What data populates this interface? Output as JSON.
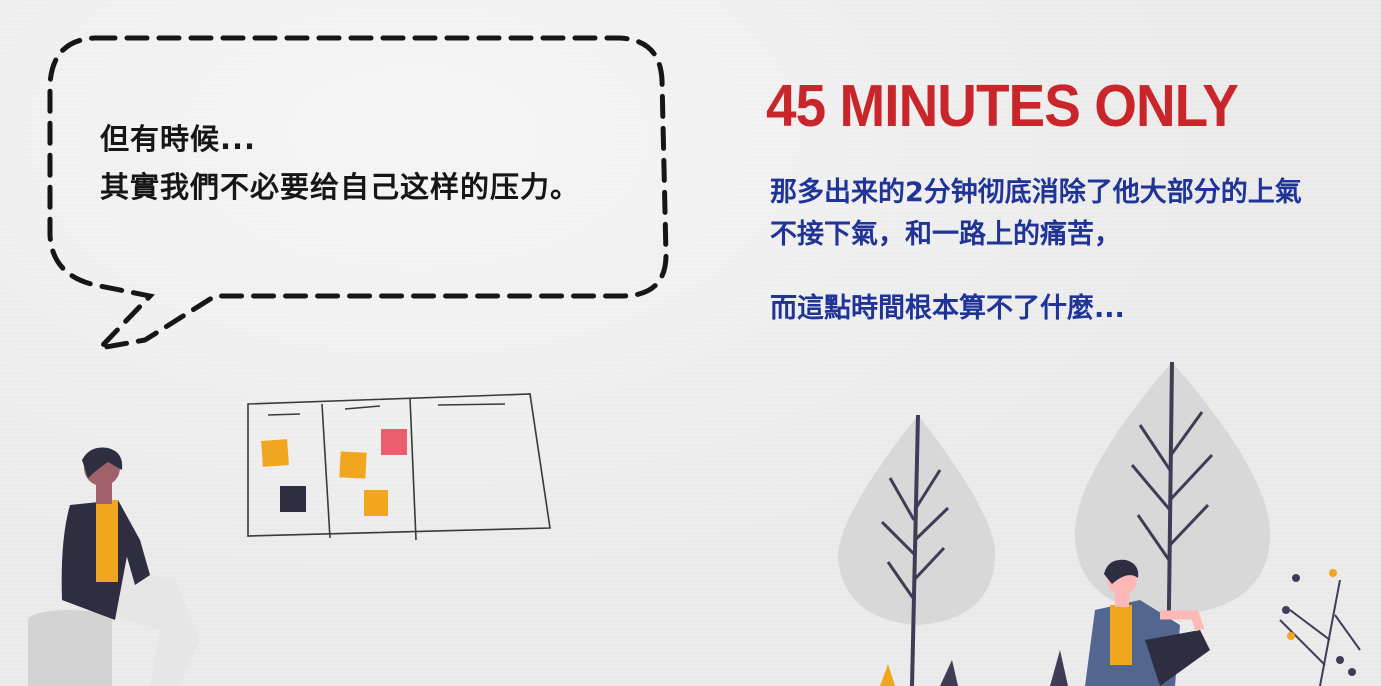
{
  "speech_bubble": {
    "lines": [
      "但有時候...",
      "其實我們不必要给自己这样的压力。"
    ]
  },
  "headline": "45 MINUTES ONLY",
  "body": {
    "line1": "那多出来的2分钟彻底消除了他大部分的上氣",
    "line2": "不接下氣，和一路上的痛苦，",
    "line3": "而這點時間根本算不了什麼..."
  },
  "colors": {
    "headline": "#c9262c",
    "body_text": "#203497",
    "bubble_text": "#161616",
    "sticky_yellow": "#f0a61e",
    "sticky_pink": "#ec5e6d",
    "sticky_dark": "#2f2e41",
    "tree_fill": "#d8d8d8"
  }
}
